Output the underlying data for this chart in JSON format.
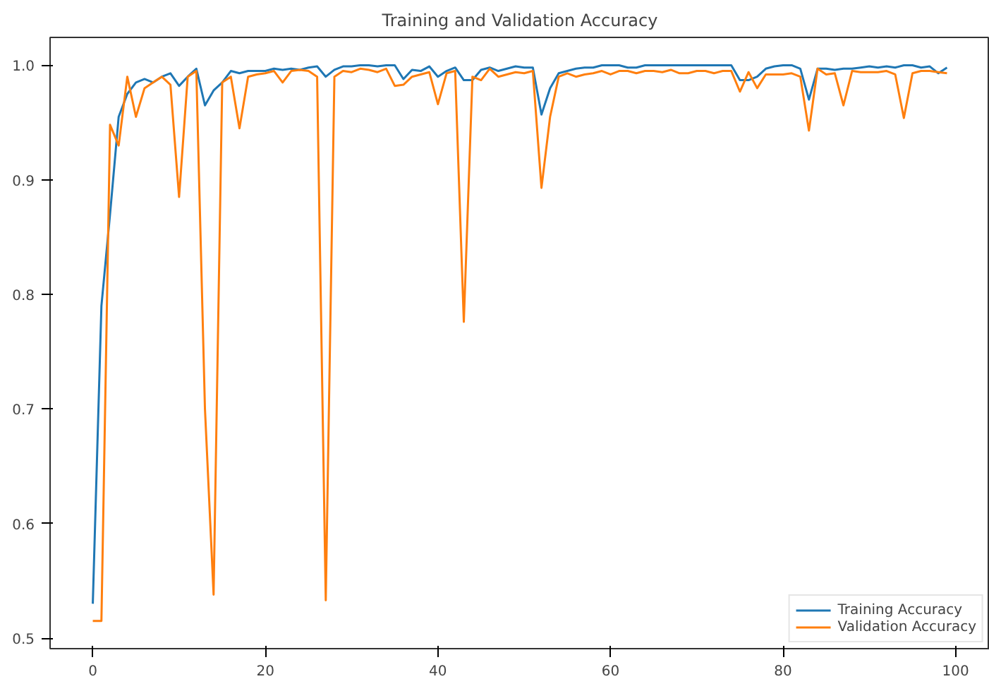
{
  "chart_data": {
    "type": "line",
    "title": "Training and Validation Accuracy",
    "x": [
      0,
      1,
      2,
      3,
      4,
      5,
      6,
      7,
      8,
      9,
      10,
      11,
      12,
      13,
      14,
      15,
      16,
      17,
      18,
      19,
      20,
      21,
      22,
      23,
      24,
      25,
      26,
      27,
      28,
      29,
      30,
      31,
      32,
      33,
      34,
      35,
      36,
      37,
      38,
      39,
      40,
      41,
      42,
      43,
      44,
      45,
      46,
      47,
      48,
      49,
      50,
      51,
      52,
      53,
      54,
      55,
      56,
      57,
      58,
      59,
      60,
      61,
      62,
      63,
      64,
      65,
      66,
      67,
      68,
      69,
      70,
      71,
      72,
      73,
      74,
      75,
      76,
      77,
      78,
      79,
      80,
      81,
      82,
      83,
      84,
      85,
      86,
      87,
      88,
      89,
      90,
      91,
      92,
      93,
      94,
      95,
      96,
      97,
      98,
      99
    ],
    "series": [
      {
        "name": "Training Accuracy",
        "color": "#1f77b4",
        "values": [
          0.53,
          0.79,
          0.87,
          0.955,
          0.975,
          0.985,
          0.988,
          0.985,
          0.99,
          0.993,
          0.982,
          0.99,
          0.997,
          0.965,
          0.978,
          0.985,
          0.995,
          0.993,
          0.995,
          0.995,
          0.995,
          0.997,
          0.996,
          0.997,
          0.996,
          0.998,
          0.999,
          0.99,
          0.996,
          0.999,
          0.999,
          1.0,
          1.0,
          0.999,
          1.0,
          1.0,
          0.988,
          0.996,
          0.995,
          0.999,
          0.99,
          0.995,
          0.998,
          0.987,
          0.987,
          0.996,
          0.998,
          0.995,
          0.997,
          0.999,
          0.998,
          0.998,
          0.957,
          0.98,
          0.993,
          0.995,
          0.997,
          0.998,
          0.998,
          1.0,
          1.0,
          1.0,
          0.998,
          0.998,
          1.0,
          1.0,
          1.0,
          1.0,
          1.0,
          1.0,
          1.0,
          1.0,
          1.0,
          1.0,
          1.0,
          0.987,
          0.987,
          0.99,
          0.997,
          0.999,
          1.0,
          1.0,
          0.997,
          0.97,
          0.997,
          0.997,
          0.996,
          0.997,
          0.997,
          0.998,
          0.999,
          0.998,
          0.999,
          0.998,
          1.0,
          1.0,
          0.998,
          0.999,
          0.993,
          0.998
        ]
      },
      {
        "name": "Validation Accuracy",
        "color": "#ff7f0e",
        "values": [
          0.515,
          0.515,
          0.948,
          0.93,
          0.99,
          0.955,
          0.98,
          0.985,
          0.99,
          0.983,
          0.885,
          0.99,
          0.995,
          0.7,
          0.538,
          0.985,
          0.99,
          0.945,
          0.99,
          0.992,
          0.993,
          0.995,
          0.985,
          0.995,
          0.996,
          0.995,
          0.99,
          0.533,
          0.99,
          0.995,
          0.994,
          0.997,
          0.996,
          0.994,
          0.997,
          0.982,
          0.983,
          0.99,
          0.992,
          0.994,
          0.966,
          0.993,
          0.995,
          0.776,
          0.99,
          0.987,
          0.997,
          0.99,
          0.992,
          0.994,
          0.993,
          0.995,
          0.893,
          0.955,
          0.99,
          0.993,
          0.99,
          0.992,
          0.993,
          0.995,
          0.992,
          0.995,
          0.995,
          0.993,
          0.995,
          0.995,
          0.994,
          0.996,
          0.993,
          0.993,
          0.995,
          0.995,
          0.993,
          0.995,
          0.995,
          0.977,
          0.994,
          0.98,
          0.992,
          0.992,
          0.992,
          0.993,
          0.99,
          0.943,
          0.997,
          0.992,
          0.993,
          0.965,
          0.995,
          0.994,
          0.994,
          0.994,
          0.995,
          0.992,
          0.954,
          0.993,
          0.995,
          0.995,
          0.994,
          0.993
        ]
      }
    ],
    "xlim": [
      -4.95,
      103.95
    ],
    "ylim": [
      0.4908,
      1.0243
    ],
    "xticks": [
      0,
      20,
      40,
      60,
      80,
      100
    ],
    "yticks": [
      {
        "value": 0.5,
        "label": "0.5"
      },
      {
        "value": 0.6,
        "label": "0.6"
      },
      {
        "value": 0.7,
        "label": "0.7"
      },
      {
        "value": 0.8,
        "label": "0.8"
      },
      {
        "value": 0.9,
        "label": "0.9"
      },
      {
        "value": 1.0,
        "label": "1.0"
      }
    ],
    "legend": "bottom right",
    "grid": false,
    "marker": "none",
    "line_style": "solid"
  }
}
